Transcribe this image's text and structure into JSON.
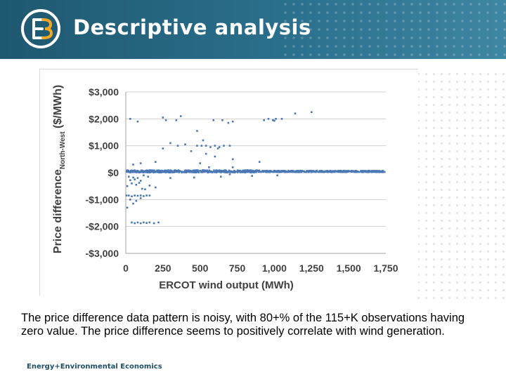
{
  "header": {
    "title": "Descriptive analysis",
    "logo_icon": "e3-logo-icon",
    "background_color": "#2a6f8c"
  },
  "caption": "The price difference data pattern is noisy, with 80+% of the 115+K observations having zero value. The price difference seems to positively correlate with wind generation.",
  "footer": {
    "logo_text": "Energy+Environmental Economics"
  },
  "chart_data": {
    "type": "scatter",
    "ylabel_main": "Price difference",
    "ylabel_subscript": "North-West",
    "ylabel_unit": "($/MWh)",
    "xlabel": "ERCOT wind output (MWh)",
    "x_ticks": [
      "0",
      "250",
      "500",
      "750",
      "1,000",
      "1,250",
      "1,500",
      "1,750"
    ],
    "y_ticks": [
      "$3,000",
      "$2,000",
      "$1,000",
      "$0",
      "-$1,000",
      "-$2,000",
      "-$3,000"
    ],
    "xlim": [
      0,
      1750
    ],
    "ylim": [
      -3000,
      3000
    ],
    "grid": "horizontal",
    "marker_color": "#4a78b5",
    "points": [
      [
        30,
        2000
      ],
      [
        250,
        2050
      ],
      [
        80,
        1900
      ],
      [
        270,
        1950
      ],
      [
        340,
        1950
      ],
      [
        370,
        2100
      ],
      [
        930,
        1950
      ],
      [
        960,
        2000
      ],
      [
        990,
        1950
      ],
      [
        1010,
        2000
      ],
      [
        1000,
        1930
      ],
      [
        1050,
        2000
      ],
      [
        1140,
        2200
      ],
      [
        1250,
        2250
      ],
      [
        720,
        1900
      ],
      [
        690,
        1850
      ],
      [
        650,
        1950
      ],
      [
        590,
        1950
      ],
      [
        480,
        1550
      ],
      [
        520,
        1200
      ],
      [
        510,
        1000
      ],
      [
        480,
        1000
      ],
      [
        540,
        1000
      ],
      [
        570,
        950
      ],
      [
        600,
        1000
      ],
      [
        630,
        950
      ],
      [
        660,
        1000
      ],
      [
        400,
        1050
      ],
      [
        350,
        1000
      ],
      [
        300,
        1100
      ],
      [
        700,
        1000
      ],
      [
        620,
        900
      ],
      [
        720,
        500
      ],
      [
        600,
        600
      ],
      [
        540,
        700
      ],
      [
        440,
        800
      ],
      [
        250,
        900
      ],
      [
        500,
        350
      ],
      [
        200,
        400
      ],
      [
        50,
        300
      ],
      [
        100,
        350
      ],
      [
        900,
        400
      ],
      [
        560,
        200
      ],
      [
        720,
        200
      ],
      [
        20,
        -150
      ],
      [
        50,
        -180
      ],
      [
        80,
        -200
      ],
      [
        30,
        -280
      ],
      [
        60,
        -250
      ],
      [
        100,
        -300
      ],
      [
        120,
        -100
      ],
      [
        150,
        -150
      ],
      [
        40,
        -400
      ],
      [
        10,
        -500
      ],
      [
        70,
        -450
      ],
      [
        110,
        -600
      ],
      [
        130,
        -620
      ],
      [
        90,
        -380
      ],
      [
        200,
        -550
      ],
      [
        160,
        -480
      ],
      [
        5,
        -850
      ],
      [
        20,
        -850
      ],
      [
        40,
        -880
      ],
      [
        60,
        -850
      ],
      [
        80,
        -860
      ],
      [
        100,
        -850
      ],
      [
        120,
        -870
      ],
      [
        140,
        -850
      ],
      [
        160,
        -850
      ],
      [
        30,
        -1000
      ],
      [
        70,
        -1050
      ],
      [
        100,
        -950
      ],
      [
        10,
        -1300
      ],
      [
        50,
        -1150
      ],
      [
        40,
        -1850
      ],
      [
        60,
        -1880
      ],
      [
        80,
        -1850
      ],
      [
        100,
        -1880
      ],
      [
        120,
        -1850
      ],
      [
        140,
        -1870
      ],
      [
        160,
        -1850
      ],
      [
        190,
        -1880
      ],
      [
        220,
        -1850
      ],
      [
        640,
        -150
      ],
      [
        460,
        -180
      ],
      [
        300,
        -200
      ],
      [
        850,
        -120
      ],
      [
        1020,
        -100
      ],
      [
        700,
        -60
      ]
    ]
  }
}
